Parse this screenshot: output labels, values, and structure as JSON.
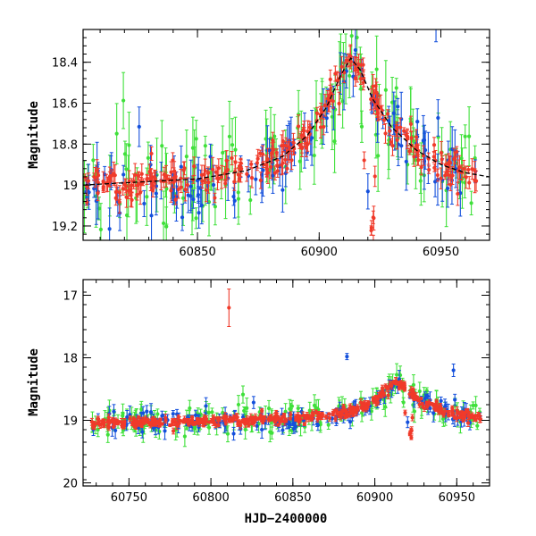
{
  "colors": {
    "red": "#f03a2a",
    "green": "#3fe03a",
    "blue": "#1450dc",
    "model": "#000000"
  },
  "chart_data": [
    {
      "type": "scatter",
      "title": "",
      "xlabel": "",
      "ylabel": "Magnitude",
      "xlim": [
        60803,
        60970
      ],
      "ylim": [
        19.27,
        18.24
      ],
      "y_inverted": true,
      "x_ticks": [
        60850,
        60900,
        60950
      ],
      "y_ticks": [
        18.4,
        18.6,
        18.8,
        19,
        19.2
      ],
      "x_tick_labels": [
        "60850",
        "60900",
        "60950"
      ],
      "y_tick_labels": [
        "18.4",
        "18.6",
        "18.8",
        "19",
        "19.2"
      ],
      "series": [
        {
          "name": "red",
          "color": "red",
          "marker": "dot with error bar"
        },
        {
          "name": "green",
          "color": "green",
          "marker": "dot with error bar"
        },
        {
          "name": "blue",
          "color": "blue",
          "marker": "dot with error bar"
        }
      ],
      "model_curve": {
        "style": "dashed",
        "baseline_mag": 19.0,
        "peak_x": 60913,
        "peak_mag": 18.38,
        "points": [
          [
            60803,
            19.0
          ],
          [
            60850,
            18.97
          ],
          [
            60870,
            18.93
          ],
          [
            60885,
            18.86
          ],
          [
            60895,
            18.76
          ],
          [
            60903,
            18.62
          ],
          [
            60909,
            18.46
          ],
          [
            60913,
            18.38
          ],
          [
            60917,
            18.44
          ],
          [
            60922,
            18.58
          ],
          [
            60930,
            18.72
          ],
          [
            60940,
            18.83
          ],
          [
            60950,
            18.9
          ],
          [
            60960,
            18.94
          ],
          [
            60970,
            18.96
          ]
        ]
      }
    },
    {
      "type": "scatter",
      "title": "",
      "xlabel": "HJD−2400000",
      "ylabel": "Magnitude",
      "xlim": [
        60722,
        60970
      ],
      "ylim": [
        20.05,
        16.75
      ],
      "y_inverted": true,
      "x_ticks": [
        60750,
        60800,
        60850,
        60900,
        60950
      ],
      "y_ticks": [
        17,
        18,
        19,
        20
      ],
      "x_tick_labels": [
        "60750",
        "60800",
        "60850",
        "60900",
        "60950"
      ],
      "y_tick_labels": [
        "17",
        "18",
        "19",
        "20"
      ],
      "series": [
        {
          "name": "red",
          "color": "red",
          "marker": "dot with error bar"
        },
        {
          "name": "green",
          "color": "green",
          "marker": "dot with error bar"
        },
        {
          "name": "blue",
          "color": "blue",
          "marker": "dot with error bar"
        }
      ],
      "notable_points": [
        {
          "series": "red",
          "x": 60811,
          "y": 17.2,
          "err": 0.3
        },
        {
          "series": "blue",
          "x": 60948,
          "y": 18.2,
          "err": 0.1
        },
        {
          "series": "blue",
          "x": 60883,
          "y": 17.98,
          "err": 0.05
        }
      ]
    }
  ]
}
